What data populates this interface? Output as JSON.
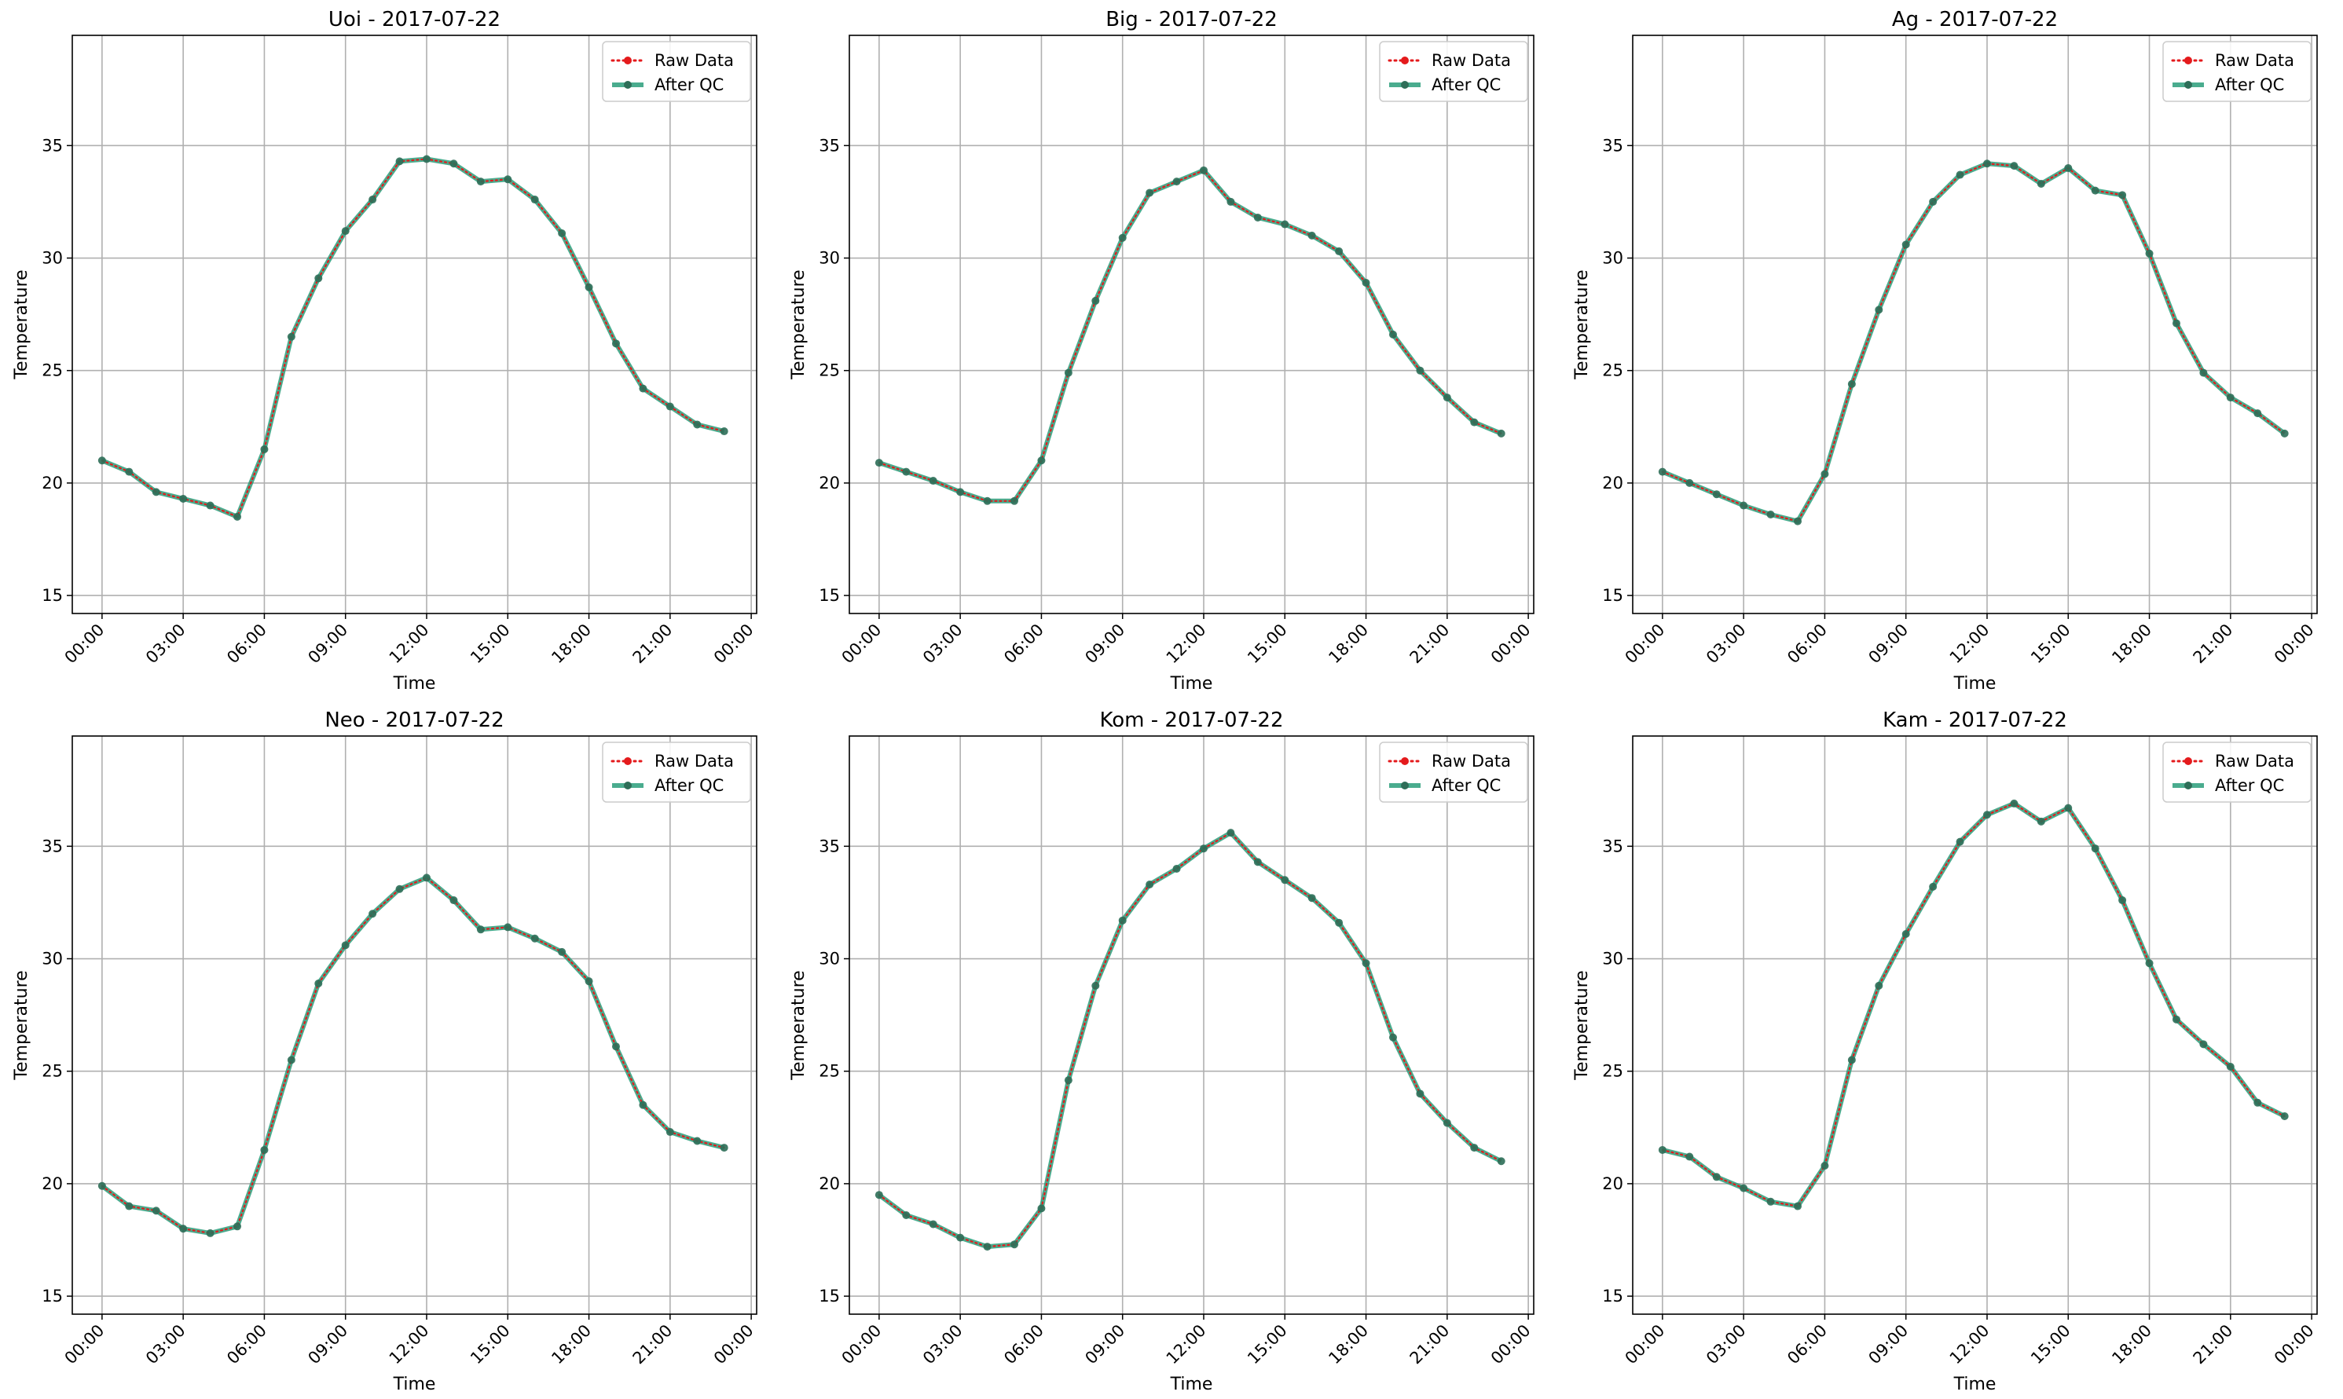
{
  "chart_data": [
    {
      "type": "line",
      "title": "Uoi - 2017-07-22",
      "xlabel": "Time",
      "ylabel": "Temperature",
      "x_tick_labels": [
        "00:00",
        "03:00",
        "06:00",
        "09:00",
        "12:00",
        "15:00",
        "18:00",
        "21:00",
        "00:00"
      ],
      "y_ticks": [
        15,
        20,
        25,
        30,
        35
      ],
      "ylim": [
        14.2,
        39.9
      ],
      "grid": true,
      "legend_position": "top-right",
      "hours": [
        0,
        1,
        2,
        3,
        4,
        5,
        6,
        7,
        8,
        9,
        10,
        11,
        12,
        13,
        14,
        15,
        16,
        17,
        18,
        19,
        20,
        21,
        22,
        23
      ],
      "series": [
        {
          "name": "Raw Data",
          "color": "#e41a1c",
          "style": "dotted",
          "values": [
            21.0,
            20.5,
            19.6,
            19.3,
            19.0,
            18.5,
            21.5,
            26.5,
            29.1,
            31.2,
            32.6,
            34.3,
            34.4,
            34.2,
            33.4,
            33.5,
            32.6,
            31.1,
            28.7,
            26.2,
            24.2,
            23.4,
            22.6,
            22.3
          ]
        },
        {
          "name": "After QC",
          "color": "#2a9d7a",
          "style": "solid",
          "values": [
            21.0,
            20.5,
            19.6,
            19.3,
            19.0,
            18.5,
            21.5,
            26.5,
            29.1,
            31.2,
            32.6,
            34.3,
            34.4,
            34.2,
            33.4,
            33.5,
            32.6,
            31.1,
            28.7,
            26.2,
            24.2,
            23.4,
            22.6,
            22.3
          ]
        }
      ]
    },
    {
      "type": "line",
      "title": "Big - 2017-07-22",
      "xlabel": "Time",
      "ylabel": "Temperature",
      "x_tick_labels": [
        "00:00",
        "03:00",
        "06:00",
        "09:00",
        "12:00",
        "15:00",
        "18:00",
        "21:00",
        "00:00"
      ],
      "y_ticks": [
        15,
        20,
        25,
        30,
        35
      ],
      "ylim": [
        14.2,
        39.9
      ],
      "grid": true,
      "legend_position": "top-right",
      "hours": [
        0,
        1,
        2,
        3,
        4,
        5,
        6,
        7,
        8,
        9,
        10,
        11,
        12,
        13,
        14,
        15,
        16,
        17,
        18,
        19,
        20,
        21,
        22,
        23
      ],
      "series": [
        {
          "name": "Raw Data",
          "color": "#e41a1c",
          "style": "dotted",
          "values": [
            20.9,
            20.5,
            20.1,
            19.6,
            19.2,
            19.2,
            21.0,
            24.9,
            28.1,
            30.9,
            32.9,
            33.4,
            33.9,
            32.5,
            31.8,
            31.5,
            31.0,
            30.3,
            28.9,
            26.6,
            25.0,
            23.8,
            22.7,
            22.2
          ]
        },
        {
          "name": "After QC",
          "color": "#2a9d7a",
          "style": "solid",
          "values": [
            20.9,
            20.5,
            20.1,
            19.6,
            19.2,
            19.2,
            21.0,
            24.9,
            28.1,
            30.9,
            32.9,
            33.4,
            33.9,
            32.5,
            31.8,
            31.5,
            31.0,
            30.3,
            28.9,
            26.6,
            25.0,
            23.8,
            22.7,
            22.2
          ]
        }
      ]
    },
    {
      "type": "line",
      "title": "Ag - 2017-07-22",
      "xlabel": "Time",
      "ylabel": "Temperature",
      "x_tick_labels": [
        "00:00",
        "03:00",
        "06:00",
        "09:00",
        "12:00",
        "15:00",
        "18:00",
        "21:00",
        "00:00"
      ],
      "y_ticks": [
        15,
        20,
        25,
        30,
        35
      ],
      "ylim": [
        14.2,
        39.9
      ],
      "grid": true,
      "legend_position": "top-right",
      "hours": [
        0,
        1,
        2,
        3,
        4,
        5,
        6,
        7,
        8,
        9,
        10,
        11,
        12,
        13,
        14,
        15,
        16,
        17,
        18,
        19,
        20,
        21,
        22,
        23
      ],
      "series": [
        {
          "name": "Raw Data",
          "color": "#e41a1c",
          "style": "dotted",
          "values": [
            20.5,
            20.0,
            19.5,
            19.0,
            18.6,
            18.3,
            20.4,
            24.4,
            27.7,
            30.6,
            32.5,
            33.7,
            34.2,
            34.1,
            33.3,
            34.0,
            33.0,
            32.8,
            30.2,
            27.1,
            24.9,
            23.8,
            23.1,
            22.2
          ]
        },
        {
          "name": "After QC",
          "color": "#2a9d7a",
          "style": "solid",
          "values": [
            20.5,
            20.0,
            19.5,
            19.0,
            18.6,
            18.3,
            20.4,
            24.4,
            27.7,
            30.6,
            32.5,
            33.7,
            34.2,
            34.1,
            33.3,
            34.0,
            33.0,
            32.8,
            30.2,
            27.1,
            24.9,
            23.8,
            23.1,
            22.2
          ]
        }
      ]
    },
    {
      "type": "line",
      "title": "Neo - 2017-07-22",
      "xlabel": "Time",
      "ylabel": "Temperature",
      "x_tick_labels": [
        "00:00",
        "03:00",
        "06:00",
        "09:00",
        "12:00",
        "15:00",
        "18:00",
        "21:00",
        "00:00"
      ],
      "y_ticks": [
        15,
        20,
        25,
        30,
        35
      ],
      "ylim": [
        14.2,
        39.9
      ],
      "grid": true,
      "legend_position": "top-right",
      "hours": [
        0,
        1,
        2,
        3,
        4,
        5,
        6,
        7,
        8,
        9,
        10,
        11,
        12,
        13,
        14,
        15,
        16,
        17,
        18,
        19,
        20,
        21,
        22,
        23
      ],
      "series": [
        {
          "name": "Raw Data",
          "color": "#e41a1c",
          "style": "dotted",
          "values": [
            19.9,
            19.0,
            18.8,
            18.0,
            17.8,
            18.1,
            21.5,
            25.5,
            28.9,
            30.6,
            32.0,
            33.1,
            33.6,
            32.6,
            31.3,
            31.4,
            30.9,
            30.3,
            29.0,
            26.1,
            23.5,
            22.3,
            21.9,
            21.6
          ]
        },
        {
          "name": "After QC",
          "color": "#2a9d7a",
          "style": "solid",
          "values": [
            19.9,
            19.0,
            18.8,
            18.0,
            17.8,
            18.1,
            21.5,
            25.5,
            28.9,
            30.6,
            32.0,
            33.1,
            33.6,
            32.6,
            31.3,
            31.4,
            30.9,
            30.3,
            29.0,
            26.1,
            23.5,
            22.3,
            21.9,
            21.6
          ]
        }
      ]
    },
    {
      "type": "line",
      "title": "Kom - 2017-07-22",
      "xlabel": "Time",
      "ylabel": "Temperature",
      "x_tick_labels": [
        "00:00",
        "03:00",
        "06:00",
        "09:00",
        "12:00",
        "15:00",
        "18:00",
        "21:00",
        "00:00"
      ],
      "y_ticks": [
        15,
        20,
        25,
        30,
        35
      ],
      "ylim": [
        14.2,
        39.9
      ],
      "grid": true,
      "legend_position": "top-right",
      "hours": [
        0,
        1,
        2,
        3,
        4,
        5,
        6,
        7,
        8,
        9,
        10,
        11,
        12,
        13,
        14,
        15,
        16,
        17,
        18,
        19,
        20,
        21,
        22,
        23
      ],
      "series": [
        {
          "name": "Raw Data",
          "color": "#e41a1c",
          "style": "dotted",
          "values": [
            19.5,
            18.6,
            18.2,
            17.6,
            17.2,
            17.3,
            18.9,
            24.6,
            28.8,
            31.7,
            33.3,
            34.0,
            34.9,
            35.6,
            34.3,
            33.5,
            32.7,
            31.6,
            29.8,
            26.5,
            24.0,
            22.7,
            21.6,
            21.0
          ]
        },
        {
          "name": "After QC",
          "color": "#2a9d7a",
          "style": "solid",
          "values": [
            19.5,
            18.6,
            18.2,
            17.6,
            17.2,
            17.3,
            18.9,
            24.6,
            28.8,
            31.7,
            33.3,
            34.0,
            34.9,
            35.6,
            34.3,
            33.5,
            32.7,
            31.6,
            29.8,
            26.5,
            24.0,
            22.7,
            21.6,
            21.0
          ]
        }
      ]
    },
    {
      "type": "line",
      "title": "Kam - 2017-07-22",
      "xlabel": "Time",
      "ylabel": "Temperature",
      "x_tick_labels": [
        "00:00",
        "03:00",
        "06:00",
        "09:00",
        "12:00",
        "15:00",
        "18:00",
        "21:00",
        "00:00"
      ],
      "y_ticks": [
        15,
        20,
        25,
        30,
        35
      ],
      "ylim": [
        14.2,
        39.9
      ],
      "grid": true,
      "legend_position": "top-right",
      "hours": [
        0,
        1,
        2,
        3,
        4,
        5,
        6,
        7,
        8,
        9,
        10,
        11,
        12,
        13,
        14,
        15,
        16,
        17,
        18,
        19,
        20,
        21,
        22,
        23
      ],
      "series": [
        {
          "name": "Raw Data",
          "color": "#e41a1c",
          "style": "dotted",
          "values": [
            21.5,
            21.2,
            20.3,
            19.8,
            19.2,
            19.0,
            20.8,
            25.5,
            28.8,
            31.1,
            33.2,
            35.2,
            36.4,
            36.9,
            36.1,
            36.7,
            34.9,
            32.6,
            29.8,
            27.3,
            26.2,
            25.2,
            23.6,
            23.0
          ]
        },
        {
          "name": "After QC",
          "color": "#2a9d7a",
          "style": "solid",
          "values": [
            21.5,
            21.2,
            20.3,
            19.8,
            19.2,
            19.0,
            20.8,
            25.5,
            28.8,
            31.1,
            33.2,
            35.2,
            36.4,
            36.9,
            36.1,
            36.7,
            34.9,
            32.6,
            29.8,
            27.3,
            26.2,
            25.2,
            23.6,
            23.0
          ]
        }
      ]
    }
  ]
}
